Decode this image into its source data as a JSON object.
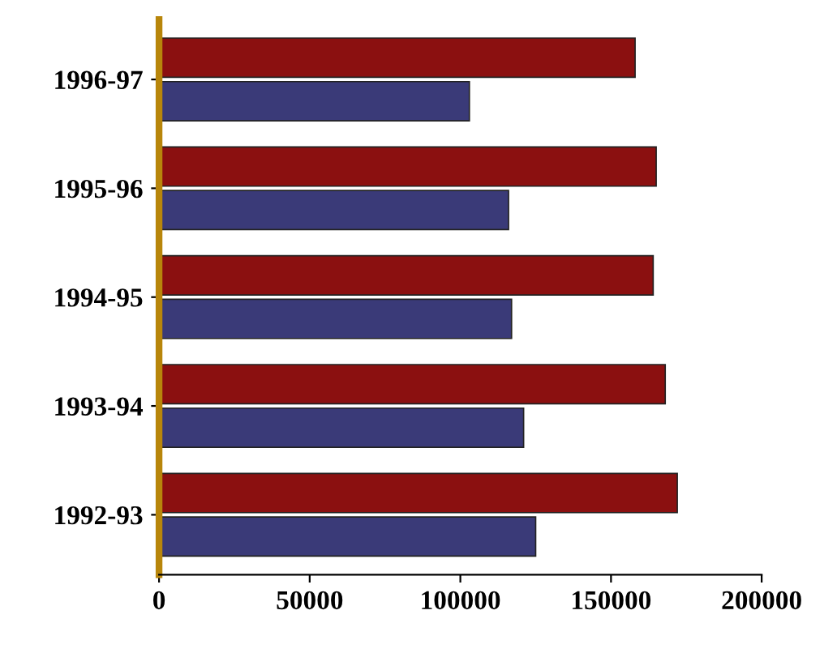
{
  "chart_data": {
    "type": "bar",
    "orientation": "horizontal",
    "categories": [
      "1996-97",
      "1995-96",
      "1994-95",
      "1993-94",
      "1992-93"
    ],
    "series": [
      {
        "color": "#8b1010",
        "values": [
          158000,
          165000,
          164000,
          168000,
          172000
        ]
      },
      {
        "color": "#3a3a78",
        "values": [
          103000,
          116000,
          117000,
          121000,
          125000
        ]
      }
    ],
    "xlim": [
      0,
      200000
    ],
    "xticks": [
      0,
      50000,
      100000,
      150000,
      200000
    ],
    "grid": false,
    "legend": false
  }
}
